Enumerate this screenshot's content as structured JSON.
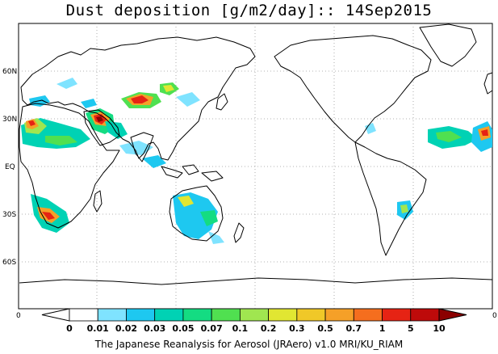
{
  "title": "Dust deposition [g/m2/day]:: 14Sep2015",
  "footer": "The Japanese Reanalysis for Aerosol (JRAero) v1.0 MRI/KU_RIAM",
  "lat_labels": [
    "60N",
    "30N",
    "EQ",
    "30S",
    "60S"
  ],
  "lat_values": [
    60,
    30,
    0,
    -30,
    -60
  ],
  "colorbar": {
    "end_label_left": "0",
    "end_label_right": "0",
    "levels": [
      "0",
      "0.01",
      "0.02",
      "0.03",
      "0.05",
      "0.07",
      "0.1",
      "0.2",
      "0.3",
      "0.5",
      "0.7",
      "1",
      "5",
      "10"
    ],
    "colors": [
      "#ffffff",
      "#ffffff",
      "#7fe3ff",
      "#1ec8f0",
      "#00d2b4",
      "#14dc82",
      "#50e050",
      "#a0e650",
      "#e1e632",
      "#f0c828",
      "#f5a028",
      "#f56e1e",
      "#e62314",
      "#be0a0a",
      "#8c0000"
    ]
  },
  "dust_regions": [
    {
      "name": "sahara-west",
      "level": 0.5
    },
    {
      "name": "arabia",
      "level": 5
    },
    {
      "name": "taklamakan",
      "level": 1
    },
    {
      "name": "north-atlantic",
      "level": 0.1
    },
    {
      "name": "caribbean",
      "level": 0.05
    },
    {
      "name": "southern-africa",
      "level": 1
    },
    {
      "name": "australia",
      "level": 0.3
    },
    {
      "name": "south-america",
      "level": 0.05
    }
  ]
}
